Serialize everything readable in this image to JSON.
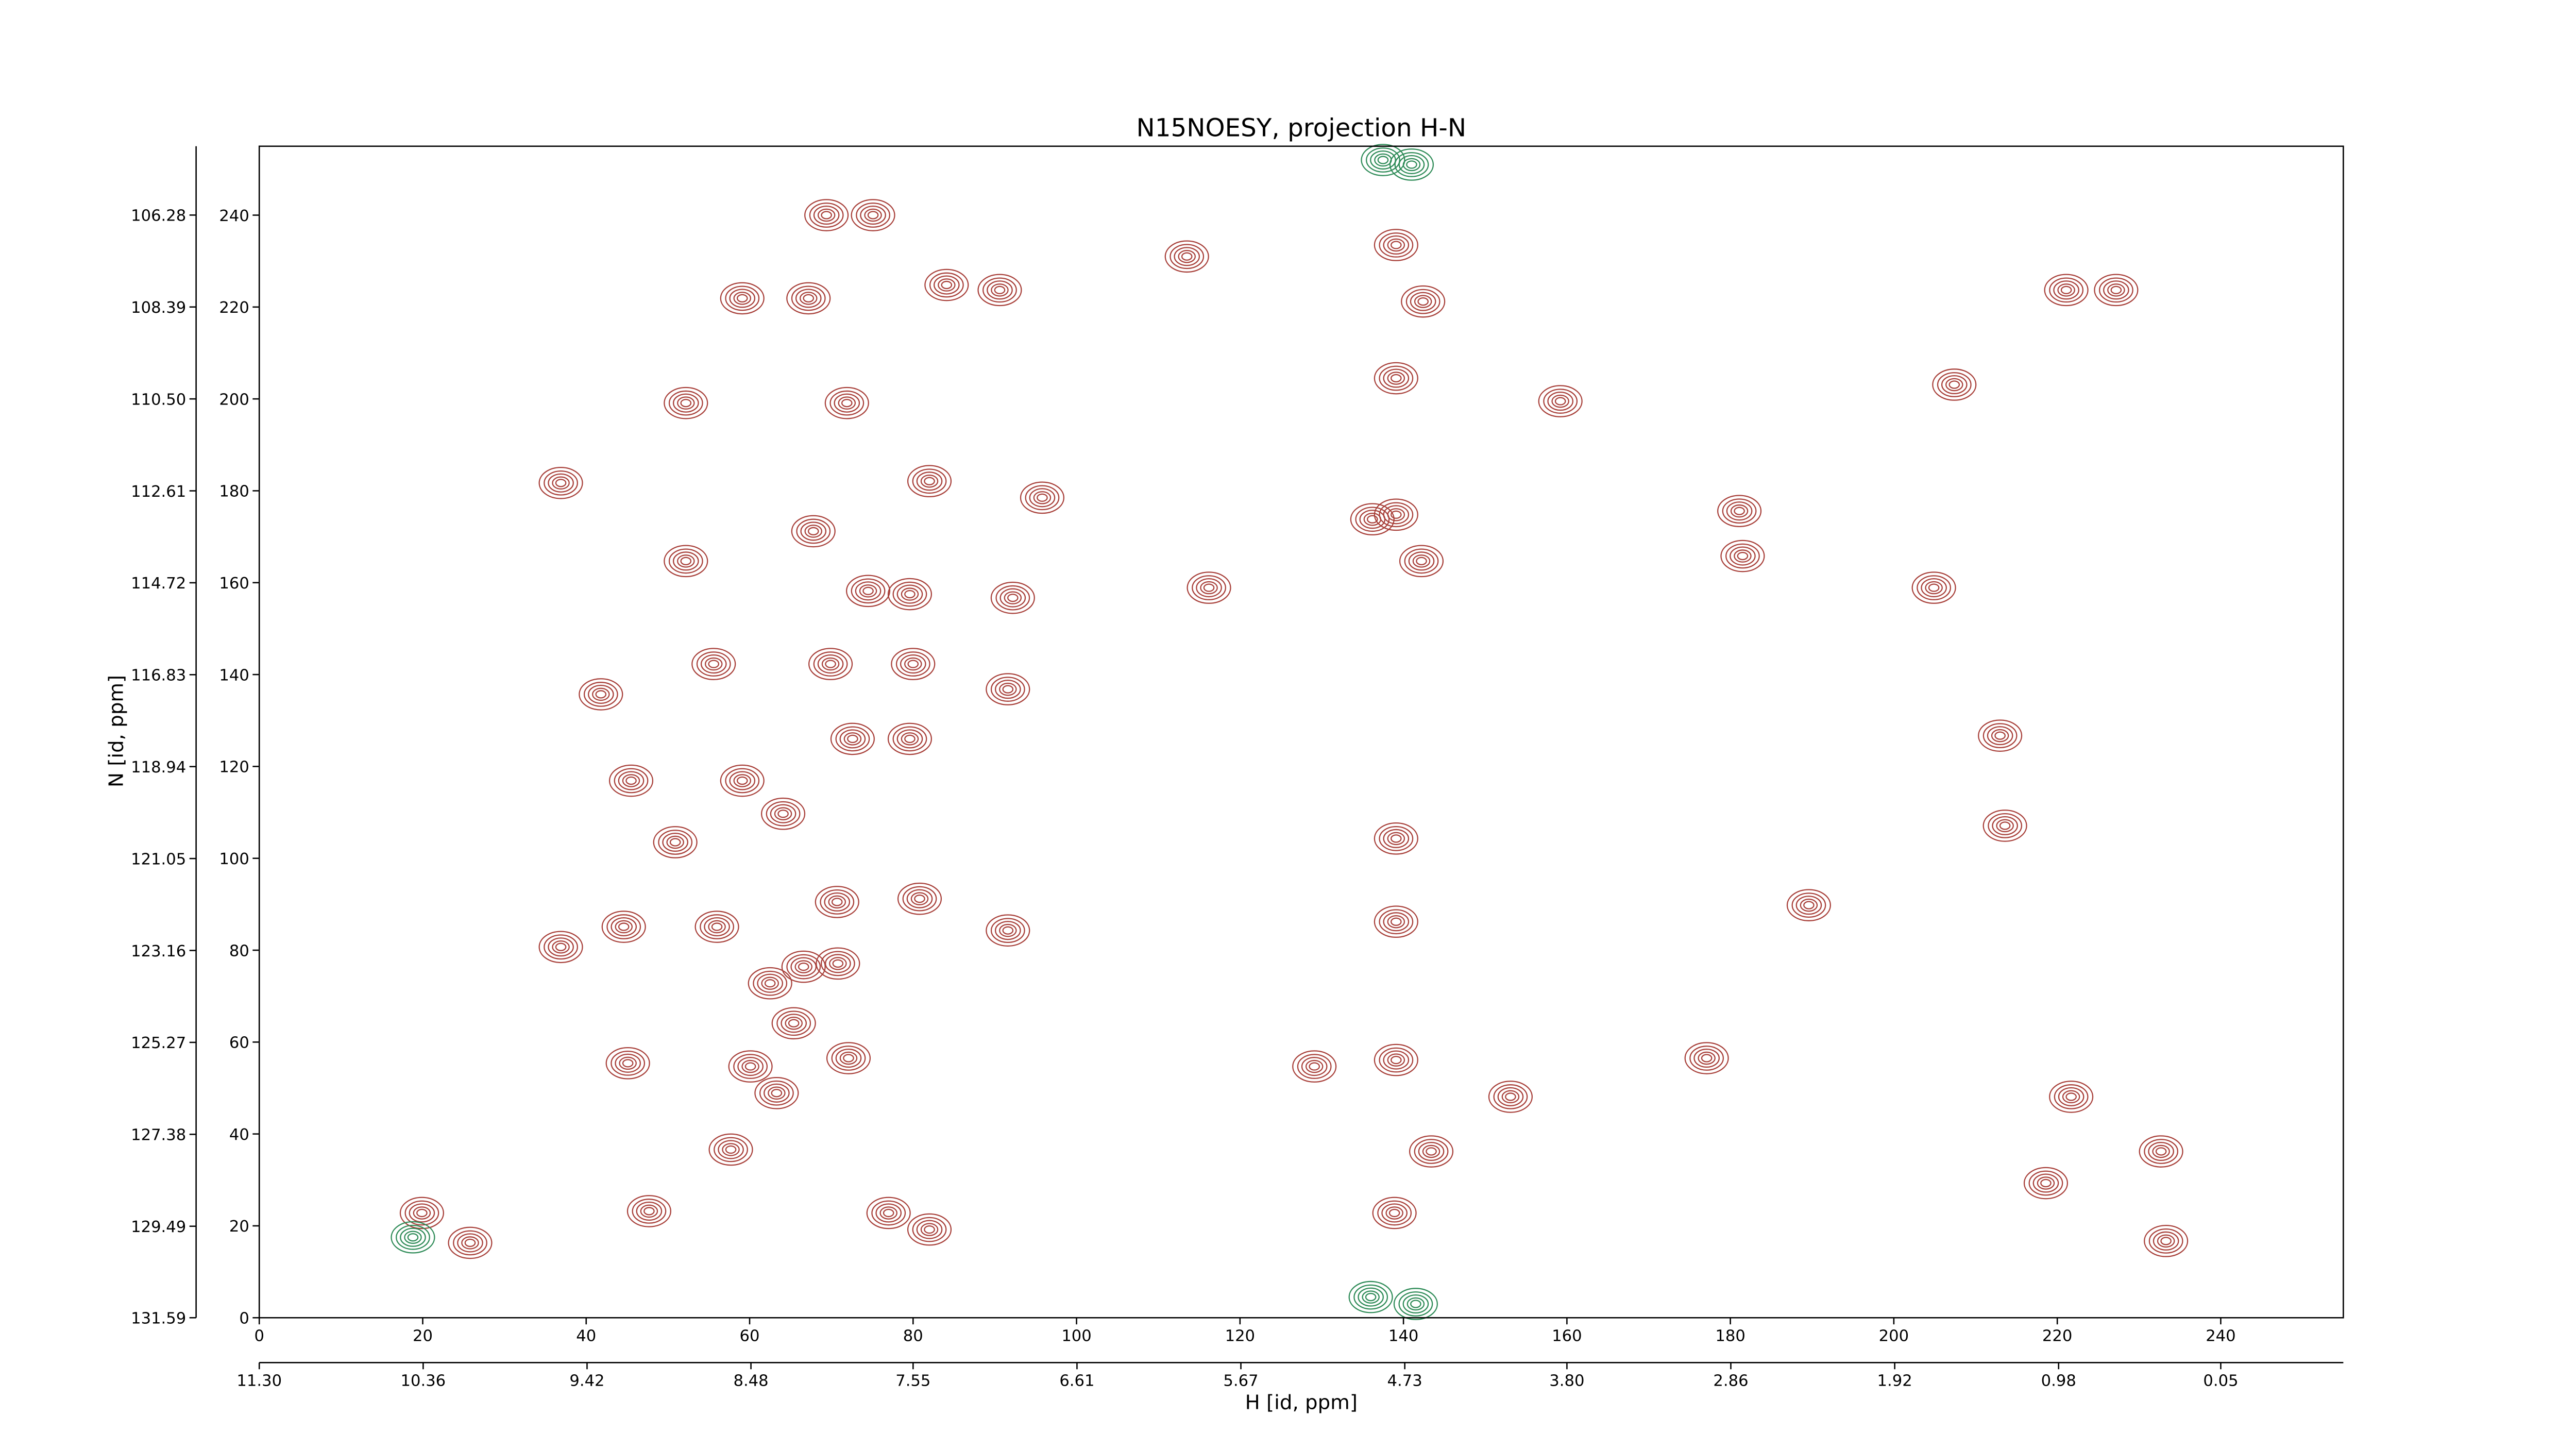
{
  "chart_data": {
    "type": "contour",
    "title": "N15NOESY, projection H-N",
    "xlabel": "H [id, ppm]",
    "ylabel": "N [id, ppm]",
    "xlim": [
      0,
      255
    ],
    "ylim": [
      0,
      255
    ],
    "xticks": [
      0,
      20,
      40,
      60,
      80,
      100,
      120,
      140,
      160,
      180,
      200,
      220,
      240
    ],
    "yticks": [
      0,
      20,
      40,
      60,
      80,
      100,
      120,
      140,
      160,
      180,
      200,
      220,
      240
    ],
    "x2lim": [
      11.3,
      -0.653
    ],
    "x2ticks": [
      {
        "value": 11.3,
        "label": "11.30"
      },
      10.36,
      9.42,
      8.48,
      7.55,
      6.61,
      5.67,
      4.73,
      {
        "value": 3.8,
        "label": "3.80"
      },
      2.86,
      1.92,
      0.98,
      0.05
    ],
    "y2lim": [
      131.59,
      104.7
    ],
    "y2ticks": [
      131.59,
      129.49,
      127.38,
      125.27,
      123.16,
      121.05,
      118.94,
      116.83,
      114.72,
      112.61,
      {
        "value": 110.5,
        "label": "110.50"
      },
      108.39,
      106.28
    ],
    "series": [
      {
        "color": "#a8403a",
        "x": [
          19.9,
          25.8,
          47.7,
          57.7,
          45.1,
          63.3,
          60.1,
          72.1,
          65.4,
          66.6,
          70.8,
          62.5,
          36.9,
          44.6,
          56.0,
          70.7,
          80.8,
          91.6,
          50.9,
          45.5,
          59.1,
          64.1,
          79.6,
          72.6,
          55.6,
          69.9,
          80.0,
          41.8,
          91.6,
          52.2,
          67.8,
          74.5,
          79.6,
          92.2,
          82.0,
          95.8,
          36.9,
          52.2,
          71.9,
          59.1,
          67.2,
          90.6,
          84.1,
          75.1,
          69.4,
          113.5,
          116.2,
          139.1,
          139.1,
          142.4,
          139.1,
          136.2,
          142.2,
          139.1,
          139.1,
          139.1,
          153.1,
          129.1,
          138.9,
          143.4,
          159.2,
          181.5,
          181.1,
          204.9,
          213.0,
          213.6,
          189.6,
          177.1,
          221.7,
          221.1,
          227.2,
          207.4,
          233.3,
          232.7,
          218.6,
          82.0,
          77.0
        ],
        "y": [
          22.8,
          16.3,
          23.2,
          36.6,
          55.4,
          48.9,
          54.7,
          56.5,
          64.1,
          76.4,
          77.1,
          72.8,
          80.7,
          85.1,
          85.1,
          90.5,
          91.2,
          84.3,
          103.5,
          116.9,
          116.9,
          109.7,
          126.0,
          126.0,
          142.3,
          142.3,
          142.3,
          135.7,
          136.8,
          164.7,
          171.2,
          158.2,
          157.5,
          156.7,
          182.1,
          178.5,
          181.7,
          199.1,
          199.1,
          221.9,
          221.9,
          223.7,
          224.8,
          240.0,
          240.0,
          231.0,
          158.9,
          233.5,
          204.5,
          221.2,
          174.8,
          173.8,
          164.7,
          104.3,
          86.2,
          56.1,
          48.1,
          54.7,
          22.8,
          36.2,
          199.5,
          165.8,
          175.6,
          158.9,
          126.7,
          107.1,
          89.8,
          56.5,
          48.1,
          223.7,
          223.7,
          203.1,
          16.7,
          36.2,
          29.3,
          19.2,
          22.8
        ]
      },
      {
        "color": "#2e8b57",
        "x": [
          137.5,
          141.0,
          136.0,
          141.5,
          18.8
        ],
        "y": [
          252.0,
          251.0,
          4.5,
          3.0,
          17.5
        ]
      }
    ]
  }
}
